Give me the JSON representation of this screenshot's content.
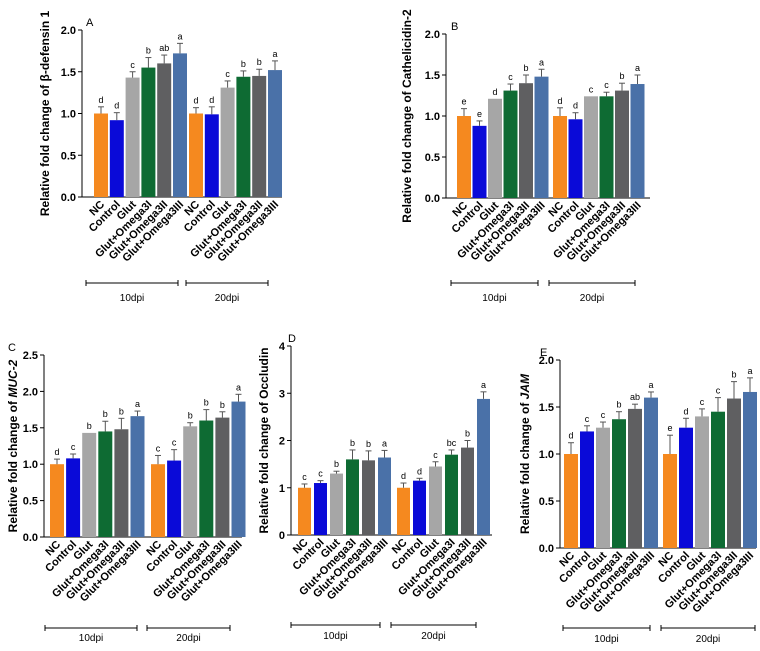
{
  "colors": [
    "#f5891f",
    "#0a0ad8",
    "#a6a6a6",
    "#0e6b33",
    "#5f5f61",
    "#4a71a8"
  ],
  "chart_data": [
    {
      "type": "bar",
      "panel_label": "A",
      "ylabel": "Relative fold change of β-defensin 1",
      "ylabel_italic": "",
      "ylabel_suffix": "",
      "ylim": [
        0,
        2.0
      ],
      "yticks": [
        "0.0",
        "0.5",
        "1.0",
        "1.5",
        "2.0"
      ],
      "categories": [
        "NC",
        "Control",
        "Glut",
        "Glut+Omega3I",
        "Glut+Omega3II",
        "Glut+Omega3III"
      ],
      "groups": [
        {
          "name": "10dpi",
          "values": [
            1.0,
            0.92,
            1.43,
            1.55,
            1.6,
            1.72
          ],
          "errors": [
            0.08,
            0.09,
            0.07,
            0.12,
            0.1,
            0.12
          ],
          "letters": [
            "d",
            "d",
            "c",
            "b",
            "ab",
            "a"
          ]
        },
        {
          "name": "20dpi",
          "values": [
            1.0,
            0.99,
            1.31,
            1.44,
            1.45,
            1.52
          ],
          "errors": [
            0.07,
            0.09,
            0.08,
            0.07,
            0.08,
            0.11
          ],
          "letters": [
            "d",
            "d",
            "c",
            "b",
            "b",
            "a"
          ]
        }
      ]
    },
    {
      "type": "bar",
      "panel_label": "B",
      "ylabel": "Relative fold change of Cathelicidin-2",
      "ylabel_italic": "",
      "ylabel_suffix": "",
      "ylim": [
        0,
        2.0
      ],
      "yticks": [
        "0.0",
        "0.5",
        "1.0",
        "1.5",
        "2.0"
      ],
      "categories": [
        "NC",
        "Control",
        "Glut",
        "Glut+Omega3I",
        "Glut+Omega3II",
        "Glut+Omega3III"
      ],
      "groups": [
        {
          "name": "10dpi",
          "values": [
            1.0,
            0.88,
            1.21,
            1.31,
            1.4,
            1.48
          ],
          "errors": [
            0.09,
            0.06,
            0.0,
            0.08,
            0.1,
            0.09
          ],
          "letters": [
            "e",
            "e",
            "d",
            "c",
            "b",
            "a"
          ]
        },
        {
          "name": "20dpi",
          "values": [
            1.0,
            0.96,
            1.24,
            1.24,
            1.31,
            1.39
          ],
          "errors": [
            0.1,
            0.08,
            0.0,
            0.05,
            0.09,
            0.11
          ],
          "letters": [
            "d",
            "d",
            "c",
            "c",
            "b",
            "a"
          ]
        }
      ]
    },
    {
      "type": "bar",
      "panel_label": "C",
      "ylabel": "Relative fold change of ",
      "ylabel_italic": "MUC-2",
      "ylabel_suffix": "",
      "ylim": [
        0,
        2.5
      ],
      "yticks": [
        "0.0",
        "0.5",
        "1.0",
        "1.5",
        "2.0",
        "2.5"
      ],
      "categories": [
        "NC",
        "Control",
        "Glut",
        "Glut+Omega3I",
        "Glut+Omega3II",
        "Glut+Omega3III"
      ],
      "groups": [
        {
          "name": "10dpi",
          "values": [
            1.0,
            1.08,
            1.43,
            1.45,
            1.48,
            1.66
          ],
          "errors": [
            0.07,
            0.06,
            0.0,
            0.14,
            0.15,
            0.07
          ],
          "letters": [
            "d",
            "c",
            "b",
            "b",
            "b",
            "a"
          ]
        },
        {
          "name": "20dpi",
          "values": [
            1.0,
            1.05,
            1.52,
            1.6,
            1.64,
            1.86
          ],
          "errors": [
            0.12,
            0.15,
            0.05,
            0.15,
            0.08,
            0.1
          ],
          "letters": [
            "c",
            "c",
            "b",
            "b",
            "b",
            "a"
          ]
        }
      ]
    },
    {
      "type": "bar",
      "panel_label": "D",
      "ylabel": "Relative fold change of Occludin",
      "ylabel_italic": "",
      "ylabel_suffix": "",
      "ylim": [
        0,
        4
      ],
      "yticks": [
        "0",
        "1",
        "2",
        "3",
        "4"
      ],
      "categories": [
        "NC",
        "Control",
        "Glut",
        "Glut+Omega3I",
        "Glut+Omega3II",
        "Glut+Omega3III"
      ],
      "groups": [
        {
          "name": "10dpi",
          "values": [
            1.0,
            1.1,
            1.3,
            1.6,
            1.58,
            1.64
          ],
          "errors": [
            0.08,
            0.05,
            0.05,
            0.2,
            0.2,
            0.15
          ],
          "letters": [
            "c",
            "c",
            "b",
            "b",
            "b",
            "a"
          ]
        },
        {
          "name": "20dpi",
          "values": [
            1.0,
            1.15,
            1.45,
            1.7,
            1.85,
            2.88
          ],
          "errors": [
            0.1,
            0.05,
            0.1,
            0.1,
            0.15,
            0.15
          ],
          "letters": [
            "d",
            "d",
            "c",
            "bc",
            "b",
            "a"
          ]
        }
      ]
    },
    {
      "type": "bar",
      "panel_label": "E",
      "ylabel": "Relative fold change of ",
      "ylabel_italic": "JAM",
      "ylabel_suffix": "",
      "ylim": [
        0,
        2.0
      ],
      "yticks": [
        "0.0",
        "0.5",
        "1.0",
        "1.5",
        "2.0"
      ],
      "categories": [
        "NC",
        "Control",
        "Glut",
        "Glut+Omega3I",
        "Glut+Omega3II",
        "Glut+Omega3III"
      ],
      "groups": [
        {
          "name": "10dpi",
          "values": [
            1.0,
            1.24,
            1.28,
            1.37,
            1.48,
            1.6
          ],
          "errors": [
            0.12,
            0.06,
            0.06,
            0.08,
            0.05,
            0.06
          ],
          "letters": [
            "d",
            "c",
            "c",
            "b",
            "ab",
            "a"
          ]
        },
        {
          "name": "20dpi",
          "values": [
            1.0,
            1.28,
            1.4,
            1.45,
            1.59,
            1.66
          ],
          "errors": [
            0.2,
            0.1,
            0.08,
            0.15,
            0.18,
            0.15
          ],
          "letters": [
            "e",
            "d",
            "c",
            "c",
            "b",
            "a"
          ]
        }
      ]
    }
  ]
}
